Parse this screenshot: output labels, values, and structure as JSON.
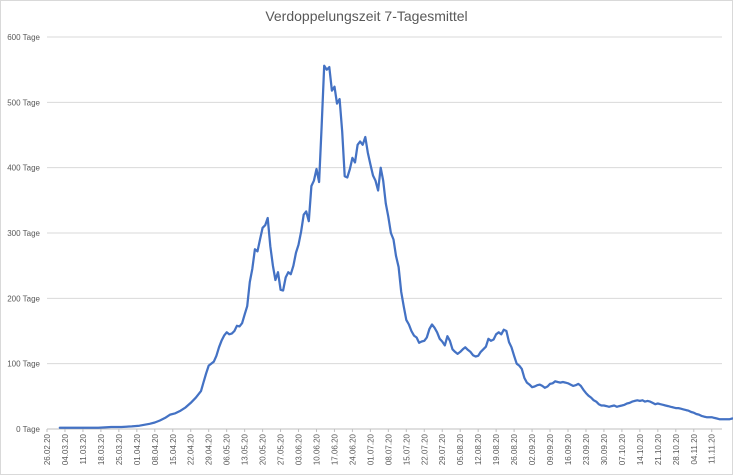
{
  "chart_data": {
    "type": "line",
    "title": "Verdoppelungszeit 7-Tagesmittel",
    "xlabel": "",
    "ylabel": "",
    "ylim": [
      0,
      600
    ],
    "grid": true,
    "legend": "none",
    "line_color": "#4472C4",
    "y_ticks": [
      "0 Tage",
      "100 Tage",
      "200 Tage",
      "300 Tage",
      "400 Tage",
      "500 Tage",
      "600 Tage"
    ],
    "x_ticks": [
      "26.02.20",
      "04.03.20",
      "11.03.20",
      "18.03.20",
      "25.03.20",
      "01.04.20",
      "08.04.20",
      "15.04.20",
      "22.04.20",
      "29.04.20",
      "06.05.20",
      "13.05.20",
      "20.05.20",
      "27.05.20",
      "03.06.20",
      "10.06.20",
      "17.06.20",
      "24.06.20",
      "01.07.20",
      "08.07.20",
      "15.07.20",
      "22.07.20",
      "29.07.20",
      "05.08.20",
      "12.08.20",
      "19.08.20",
      "26.08.20",
      "02.09.20",
      "09.09.20",
      "16.09.20",
      "23.09.20",
      "30.09.20",
      "07.10.20",
      "14.10.20",
      "21.10.20",
      "28.10.20",
      "04.11.20",
      "11.11.20"
    ],
    "series": [
      {
        "values": [
          [
            5,
            2
          ],
          [
            10,
            2
          ],
          [
            20,
            2
          ],
          [
            25,
            3
          ],
          [
            29,
            3
          ],
          [
            33,
            4
          ],
          [
            36,
            5
          ],
          [
            40,
            8
          ],
          [
            42,
            10
          ],
          [
            44,
            13
          ],
          [
            46,
            17
          ],
          [
            48,
            22
          ],
          [
            50,
            24
          ],
          [
            52,
            28
          ],
          [
            54,
            33
          ],
          [
            56,
            40
          ],
          [
            58,
            48
          ],
          [
            60,
            58
          ],
          [
            61,
            72
          ],
          [
            62,
            85
          ],
          [
            63,
            97
          ],
          [
            65,
            103
          ],
          [
            66,
            112
          ],
          [
            67,
            125
          ],
          [
            68,
            135
          ],
          [
            69,
            143
          ],
          [
            70,
            148
          ],
          [
            71,
            145
          ],
          [
            72,
            146
          ],
          [
            73,
            150
          ],
          [
            74,
            158
          ],
          [
            75,
            157
          ],
          [
            76,
            162
          ],
          [
            77,
            175
          ],
          [
            78,
            188
          ],
          [
            79,
            225
          ],
          [
            80,
            245
          ],
          [
            81,
            275
          ],
          [
            82,
            272
          ],
          [
            83,
            290
          ],
          [
            84,
            308
          ],
          [
            85,
            312
          ],
          [
            86,
            323
          ],
          [
            87,
            280
          ],
          [
            88,
            250
          ],
          [
            89,
            228
          ],
          [
            90,
            240
          ],
          [
            91,
            213
          ],
          [
            92,
            212
          ],
          [
            93,
            232
          ],
          [
            94,
            240
          ],
          [
            95,
            237
          ],
          [
            96,
            250
          ],
          [
            97,
            270
          ],
          [
            98,
            282
          ],
          [
            99,
            302
          ],
          [
            100,
            328
          ],
          [
            101,
            333
          ],
          [
            102,
            318
          ],
          [
            103,
            372
          ],
          [
            104,
            380
          ],
          [
            105,
            398
          ],
          [
            106,
            378
          ],
          [
            107,
            462
          ],
          [
            108,
            556
          ],
          [
            109,
            550
          ],
          [
            110,
            554
          ],
          [
            111,
            518
          ],
          [
            112,
            524
          ],
          [
            113,
            498
          ],
          [
            114,
            505
          ],
          [
            115,
            455
          ],
          [
            116,
            387
          ],
          [
            117,
            385
          ],
          [
            118,
            398
          ],
          [
            119,
            415
          ],
          [
            120,
            408
          ],
          [
            121,
            435
          ],
          [
            122,
            440
          ],
          [
            123,
            435
          ],
          [
            124,
            447
          ],
          [
            125,
            423
          ],
          [
            126,
            405
          ],
          [
            127,
            388
          ],
          [
            128,
            380
          ],
          [
            129,
            365
          ],
          [
            130,
            400
          ],
          [
            131,
            380
          ],
          [
            132,
            345
          ],
          [
            133,
            325
          ],
          [
            134,
            300
          ],
          [
            135,
            290
          ],
          [
            136,
            265
          ],
          [
            137,
            248
          ],
          [
            138,
            210
          ],
          [
            139,
            188
          ],
          [
            140,
            167
          ],
          [
            141,
            160
          ],
          [
            142,
            150
          ],
          [
            143,
            143
          ],
          [
            144,
            140
          ],
          [
            145,
            132
          ],
          [
            146,
            134
          ],
          [
            147,
            135
          ],
          [
            148,
            140
          ],
          [
            149,
            153
          ],
          [
            150,
            160
          ],
          [
            151,
            155
          ],
          [
            152,
            148
          ],
          [
            153,
            138
          ],
          [
            154,
            134
          ],
          [
            155,
            128
          ],
          [
            156,
            142
          ],
          [
            157,
            135
          ],
          [
            158,
            122
          ],
          [
            159,
            118
          ],
          [
            160,
            115
          ],
          [
            161,
            118
          ],
          [
            162,
            122
          ],
          [
            163,
            125
          ],
          [
            164,
            121
          ],
          [
            165,
            118
          ],
          [
            166,
            113
          ],
          [
            167,
            111
          ],
          [
            168,
            112
          ],
          [
            169,
            118
          ],
          [
            170,
            122
          ],
          [
            171,
            126
          ],
          [
            172,
            138
          ],
          [
            173,
            135
          ],
          [
            174,
            137
          ],
          [
            175,
            145
          ],
          [
            176,
            148
          ],
          [
            177,
            145
          ],
          [
            178,
            152
          ],
          [
            179,
            150
          ],
          [
            180,
            133
          ],
          [
            181,
            125
          ],
          [
            182,
            112
          ],
          [
            183,
            100
          ],
          [
            184,
            97
          ],
          [
            185,
            92
          ],
          [
            186,
            78
          ],
          [
            187,
            71
          ],
          [
            188,
            68
          ],
          [
            189,
            64
          ],
          [
            190,
            65
          ],
          [
            191,
            67
          ],
          [
            192,
            68
          ],
          [
            193,
            66
          ],
          [
            194,
            63
          ],
          [
            195,
            65
          ],
          [
            196,
            69
          ],
          [
            197,
            70
          ],
          [
            198,
            73
          ],
          [
            199,
            72
          ],
          [
            200,
            71
          ],
          [
            201,
            72
          ],
          [
            202,
            71
          ],
          [
            203,
            70
          ],
          [
            204,
            68
          ],
          [
            205,
            66
          ],
          [
            206,
            67
          ],
          [
            207,
            69
          ],
          [
            208,
            66
          ],
          [
            209,
            60
          ],
          [
            210,
            55
          ],
          [
            211,
            51
          ],
          [
            212,
            48
          ],
          [
            213,
            44
          ],
          [
            214,
            42
          ],
          [
            215,
            38
          ],
          [
            216,
            36
          ],
          [
            217,
            36
          ],
          [
            218,
            35
          ],
          [
            219,
            34
          ],
          [
            220,
            35
          ],
          [
            221,
            36
          ],
          [
            222,
            34
          ],
          [
            223,
            35
          ],
          [
            224,
            36
          ],
          [
            225,
            37
          ],
          [
            226,
            39
          ],
          [
            227,
            40
          ],
          [
            228,
            42
          ],
          [
            229,
            43
          ],
          [
            230,
            44
          ],
          [
            231,
            43
          ],
          [
            232,
            44
          ],
          [
            233,
            42
          ],
          [
            234,
            43
          ],
          [
            235,
            42
          ],
          [
            236,
            40
          ],
          [
            237,
            38
          ],
          [
            238,
            39
          ],
          [
            239,
            38
          ],
          [
            240,
            37
          ],
          [
            241,
            36
          ],
          [
            242,
            35
          ],
          [
            243,
            34
          ],
          [
            244,
            33
          ],
          [
            245,
            32
          ],
          [
            246,
            32
          ],
          [
            247,
            31
          ],
          [
            248,
            30
          ],
          [
            249,
            29
          ],
          [
            250,
            28
          ],
          [
            251,
            26
          ],
          [
            252,
            25
          ],
          [
            253,
            23
          ],
          [
            254,
            22
          ],
          [
            255,
            20
          ],
          [
            256,
            19
          ],
          [
            257,
            18
          ],
          [
            258,
            18
          ],
          [
            259,
            18
          ],
          [
            260,
            17
          ],
          [
            261,
            16
          ],
          [
            262,
            15
          ],
          [
            263,
            15
          ],
          [
            264,
            15
          ],
          [
            265,
            15
          ],
          [
            266,
            15
          ],
          [
            267,
            16
          ],
          [
            268,
            16
          ],
          [
            269,
            15
          ],
          [
            270,
            15
          ],
          [
            271,
            16
          ],
          [
            272,
            17
          ]
        ]
      }
    ]
  }
}
